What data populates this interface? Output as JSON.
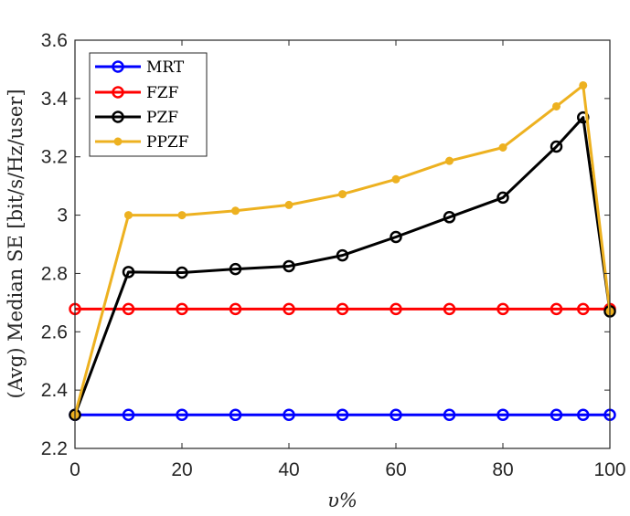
{
  "chart_data": {
    "type": "line",
    "title": "",
    "xlabel": "υ%",
    "ylabel": "(Avg) Median SE [bit/s/Hz/user]",
    "xlim": [
      0,
      100
    ],
    "ylim": [
      2.2,
      3.6
    ],
    "xticks": [
      0,
      20,
      40,
      60,
      80,
      100
    ],
    "yticks": [
      2.2,
      2.4,
      2.6,
      2.8,
      3,
      3.2,
      3.4,
      3.6
    ],
    "xtick_labels": [
      "0",
      "20",
      "40",
      "60",
      "80",
      "100"
    ],
    "ytick_labels": [
      "2.2",
      "2.4",
      "2.6",
      "2.8",
      "3",
      "3.2",
      "3.4",
      "3.6"
    ],
    "grid": false,
    "legend_position": "top-left",
    "series": [
      {
        "name": "MRT",
        "color": "#0000ff",
        "marker": "open-circle",
        "x": [
          0,
          10,
          20,
          30,
          40,
          50,
          60,
          70,
          80,
          90,
          95,
          100
        ],
        "y": [
          2.315,
          2.315,
          2.315,
          2.315,
          2.315,
          2.315,
          2.315,
          2.315,
          2.315,
          2.315,
          2.315,
          2.315
        ]
      },
      {
        "name": "FZF",
        "color": "#ff0000",
        "marker": "open-circle",
        "x": [
          0,
          10,
          20,
          30,
          40,
          50,
          60,
          70,
          80,
          90,
          95,
          100
        ],
        "y": [
          2.678,
          2.678,
          2.678,
          2.678,
          2.678,
          2.678,
          2.678,
          2.678,
          2.678,
          2.678,
          2.678,
          2.678
        ]
      },
      {
        "name": "PZF",
        "color": "#000000",
        "marker": "open-circle",
        "x": [
          0,
          10,
          20,
          30,
          40,
          50,
          60,
          70,
          80,
          90,
          95,
          100
        ],
        "y": [
          2.315,
          2.805,
          2.803,
          2.815,
          2.825,
          2.862,
          2.925,
          2.993,
          3.06,
          3.235,
          3.335,
          2.67
        ]
      },
      {
        "name": "PPZF",
        "color": "#edb120",
        "marker": "filled-dot",
        "x": [
          0,
          10,
          20,
          30,
          40,
          50,
          60,
          70,
          80,
          90,
          95,
          100
        ],
        "y": [
          2.315,
          3.0,
          3.0,
          3.015,
          3.035,
          3.072,
          3.123,
          3.186,
          3.232,
          3.373,
          3.445,
          2.67
        ]
      }
    ]
  }
}
